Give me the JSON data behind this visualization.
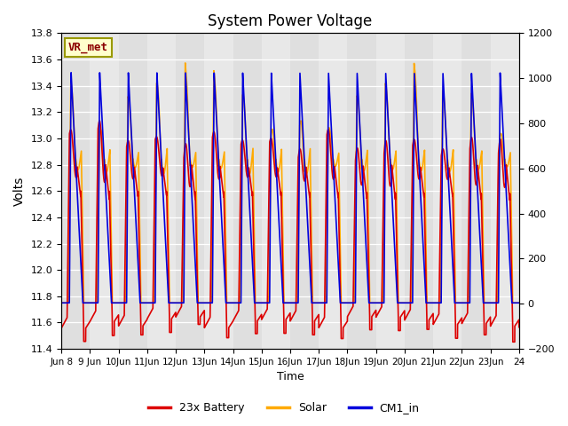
{
  "title": "System Power Voltage",
  "ylabel_left": "Volts",
  "xlabel": "Time",
  "ylim_left": [
    11.4,
    13.8
  ],
  "ylim_right": [
    -200,
    1200
  ],
  "yticks_left": [
    11.4,
    11.6,
    11.8,
    12.0,
    12.2,
    12.4,
    12.6,
    12.8,
    13.0,
    13.2,
    13.4,
    13.6,
    13.8
  ],
  "yticks_right": [
    -200,
    0,
    200,
    400,
    600,
    800,
    1000,
    1200
  ],
  "xtick_labels": [
    "Jun 8",
    "9 Jun",
    "10Jun",
    "11Jun",
    "12Jun",
    "13Jun",
    "14Jun",
    "15Jun",
    "16Jun",
    "17Jun",
    "18Jun",
    "19Jun",
    "20Jun",
    "21Jun",
    "22Jun",
    "23Jun",
    "24"
  ],
  "legend_labels": [
    "23x Battery",
    "Solar",
    "CM1_in"
  ],
  "legend_colors": [
    "#dd0000",
    "#ffaa00",
    "#0000dd"
  ],
  "vr_met_label": "VR_met",
  "bg_color": "#e8e8e8",
  "n_days": 16,
  "title_fontsize": 12,
  "linewidth": 1.2
}
